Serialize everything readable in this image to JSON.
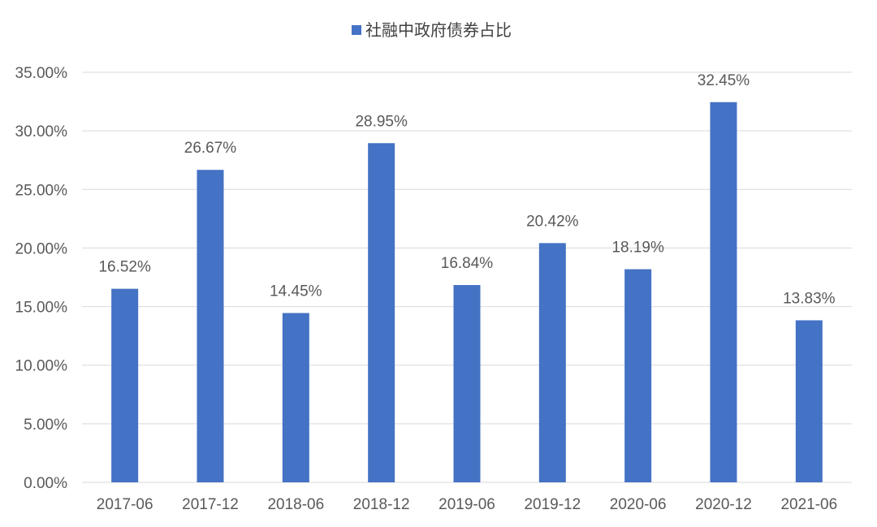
{
  "chart_data": {
    "type": "bar",
    "legend": {
      "entries": [
        "社融中政府债券占比"
      ],
      "position": "top-center"
    },
    "categories": [
      "2017-06",
      "2017-12",
      "2018-06",
      "2018-12",
      "2019-06",
      "2019-12",
      "2020-06",
      "2020-12",
      "2021-06"
    ],
    "series": [
      {
        "name": "社融中政府债券占比",
        "values": [
          16.52,
          26.67,
          14.45,
          28.95,
          16.84,
          20.42,
          18.19,
          32.45,
          13.83
        ],
        "labels": [
          "16.52%",
          "26.67%",
          "14.45%",
          "28.95%",
          "16.84%",
          "20.42%",
          "18.19%",
          "32.45%",
          "13.83%"
        ],
        "color": "#4472C4"
      }
    ],
    "ylim": [
      0,
      35
    ],
    "yticks": [
      0,
      5,
      10,
      15,
      20,
      25,
      30,
      35
    ],
    "ytick_labels": [
      "0.00%",
      "5.00%",
      "10.00%",
      "15.00%",
      "20.00%",
      "25.00%",
      "30.00%",
      "35.00%"
    ],
    "grid": true,
    "gridline_color": "#D9D9D9",
    "xlabel": "",
    "ylabel": "",
    "title": ""
  }
}
